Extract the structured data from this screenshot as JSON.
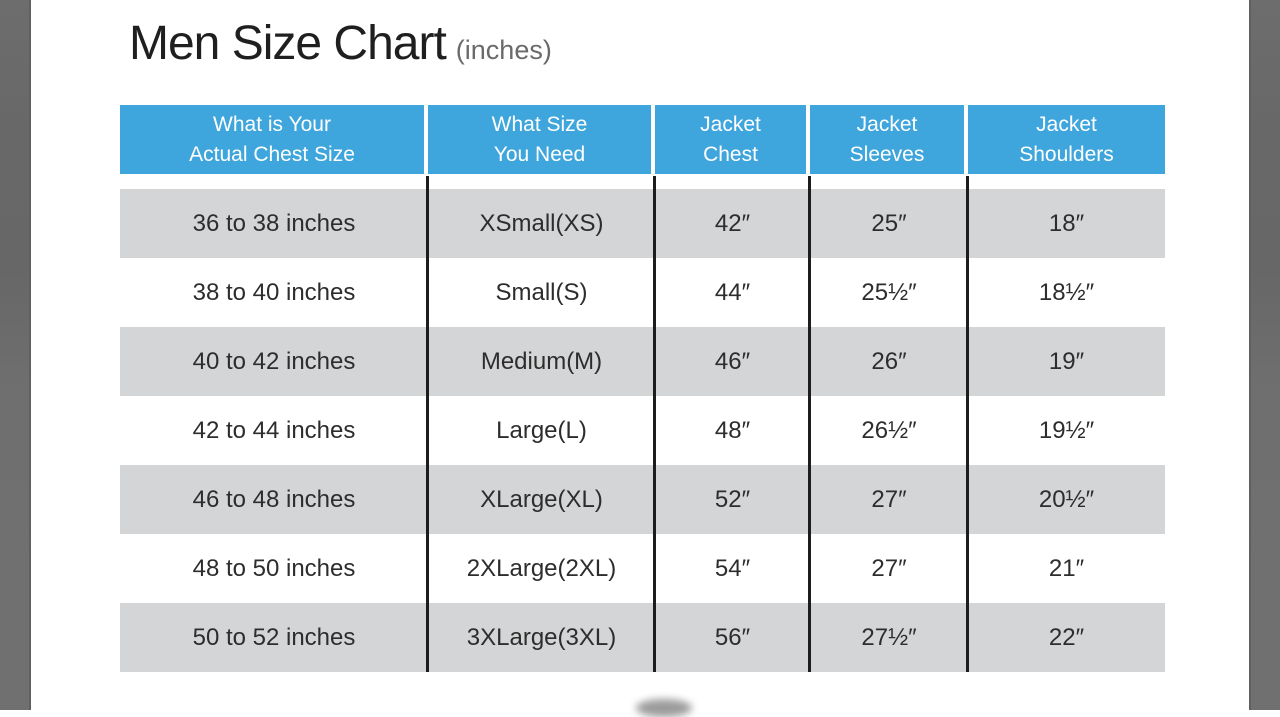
{
  "header": {
    "title": "Men Size Chart",
    "unit_label": "(inches)"
  },
  "table": {
    "headers": [
      {
        "line1": "What is Your",
        "line2": "Actual Chest Size"
      },
      {
        "line1": "What Size",
        "line2": "You Need"
      },
      {
        "line1": "Jacket",
        "line2": "Chest"
      },
      {
        "line1": "Jacket",
        "line2": "Sleeves"
      },
      {
        "line1": "Jacket",
        "line2": "Shoulders"
      }
    ],
    "rows": [
      [
        "36 to 38 inches",
        "XSmall(XS)",
        "42″",
        "25″",
        "18″"
      ],
      [
        "38 to 40 inches",
        "Small(S)",
        "44″",
        "25½″",
        "18½″"
      ],
      [
        "40 to 42 inches",
        "Medium(M)",
        "46″",
        "26″",
        "19″"
      ],
      [
        "42 to 44 inches",
        "Large(L)",
        "48″",
        "26½″",
        "19½″"
      ],
      [
        "46 to 48 inches",
        "XLarge(XL)",
        "52″",
        "27″",
        "20½″"
      ],
      [
        "48 to 50 inches",
        "2XLarge(2XL)",
        "54″",
        "27″",
        "21″"
      ],
      [
        "50 to 52 inches",
        "3XLarge(3XL)",
        "56″",
        "27½″",
        "22″"
      ]
    ]
  },
  "colors": {
    "header_bg": "#3EA6DC",
    "row_alt_bg": "#D4D5D6",
    "side_bar": "#6E6E6E",
    "divider_line": "#1D1D1D",
    "body_text": "#2D2D2D",
    "title_text": "#1F1F1F",
    "unit_text": "#6A6A6A"
  },
  "chart_data": {
    "type": "table",
    "title": "Men Size Chart (inches)",
    "units": "inches",
    "columns": [
      "What is Your Actual Chest Size",
      "What Size You Need",
      "Jacket Chest",
      "Jacket Sleeves",
      "Jacket Shoulders"
    ],
    "rows": [
      [
        "36 to 38 inches",
        "XSmall(XS)",
        42,
        25,
        18
      ],
      [
        "38 to 40 inches",
        "Small(S)",
        44,
        25.5,
        18.5
      ],
      [
        "40 to 42 inches",
        "Medium(M)",
        46,
        26,
        19
      ],
      [
        "42 to 44 inches",
        "Large(L)",
        48,
        26.5,
        19.5
      ],
      [
        "46 to 48 inches",
        "XLarge(XL)",
        52,
        27,
        20.5
      ],
      [
        "48 to 50 inches",
        "2XLarge(2XL)",
        54,
        27,
        21
      ],
      [
        "50 to 52 inches",
        "3XLarge(3XL)",
        56,
        27.5,
        22
      ]
    ]
  }
}
